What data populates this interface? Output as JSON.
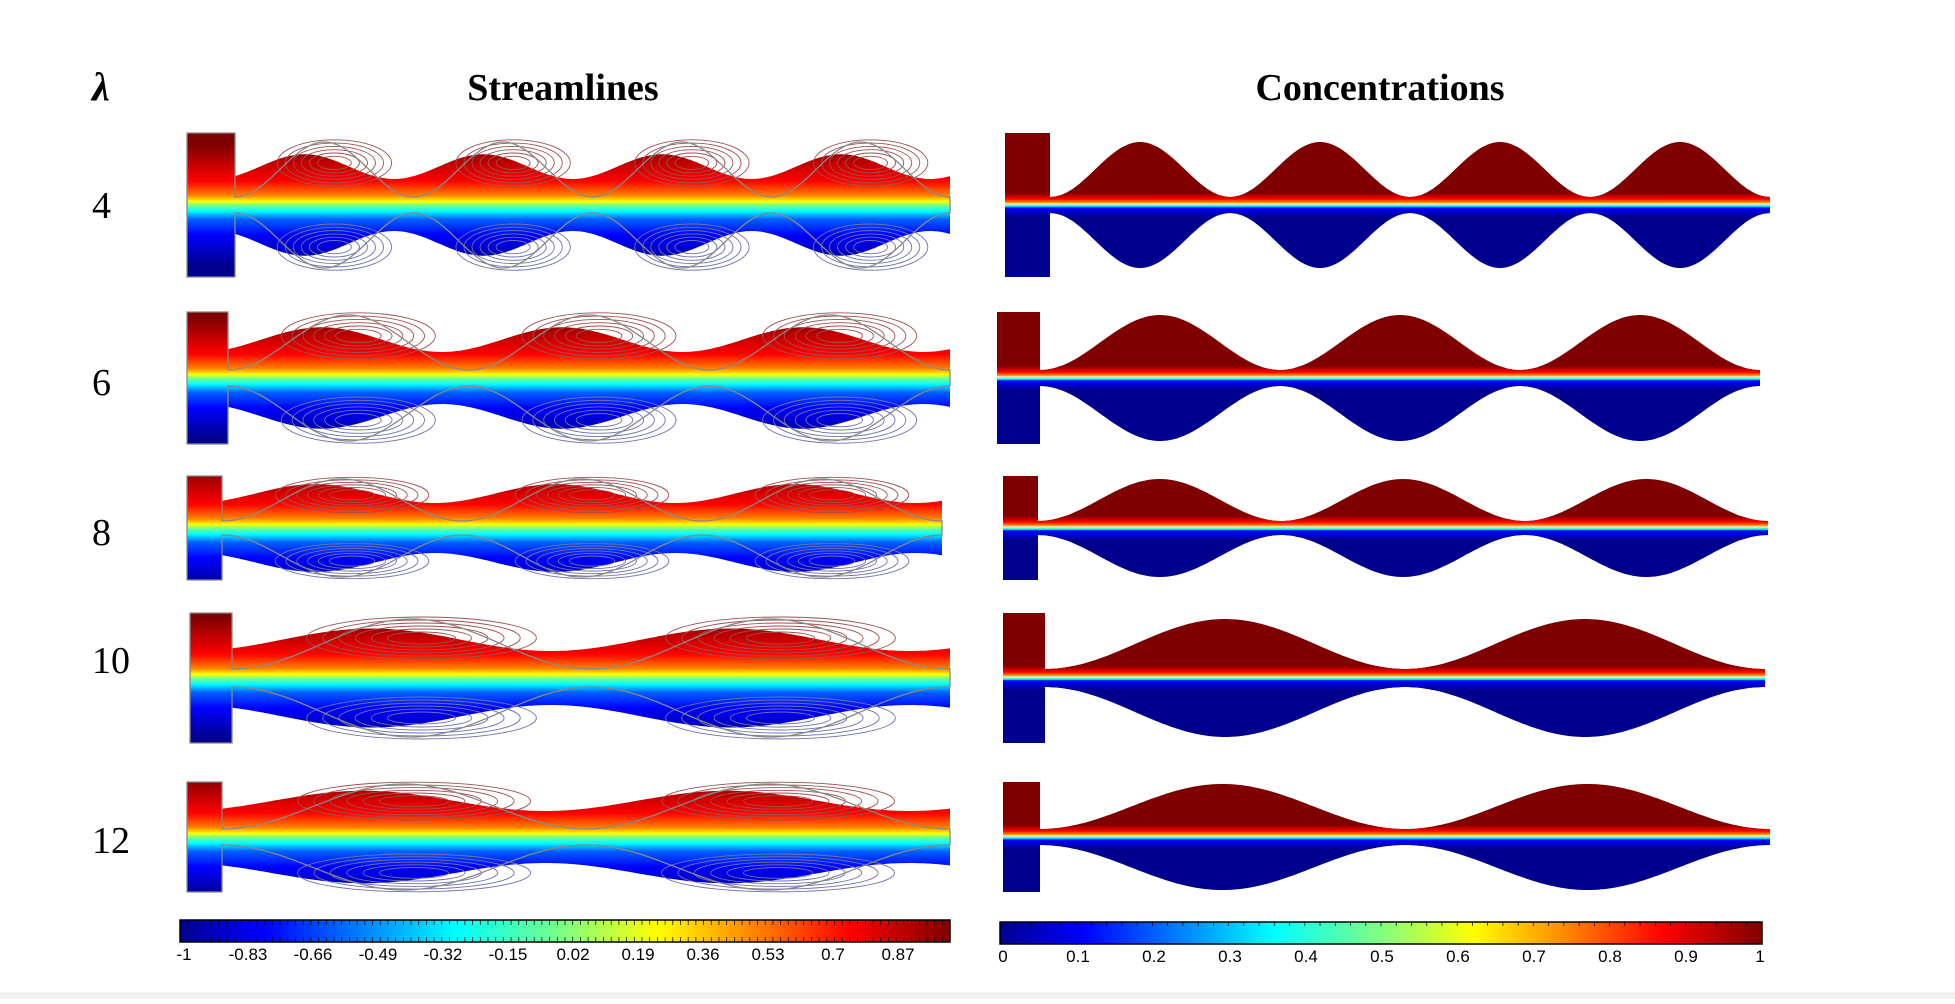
{
  "headers": {
    "lambda_symbol": "λ",
    "streamlines": "Streamlines",
    "concentrations": "Concentrations"
  },
  "rows": [
    {
      "lambda": "4",
      "waves": 4
    },
    {
      "lambda": "6",
      "waves": 3
    },
    {
      "lambda": "8",
      "waves": 3
    },
    {
      "lambda": "10",
      "waves": 2
    },
    {
      "lambda": "12",
      "waves": 2
    }
  ],
  "colorbars": {
    "streamlines": {
      "ticks": [
        "-1",
        "-0.83",
        "-0.66",
        "-0.49",
        "-0.32",
        "-0.15",
        "0.02",
        "0.19",
        "0.36",
        "0.53",
        "0.7",
        "0.87"
      ],
      "range": [
        -1,
        1
      ]
    },
    "concentrations": {
      "ticks": [
        "0",
        "0.1",
        "0.2",
        "0.3",
        "0.4",
        "0.5",
        "0.6",
        "0.7",
        "0.8",
        "0.9",
        "1"
      ],
      "range": [
        0,
        1
      ]
    }
  },
  "colors": {
    "dark_red": "#800000",
    "red": "#ff0000",
    "orange": "#ff8000",
    "yellow": "#ffff00",
    "green": "#80ff80",
    "cyan": "#00ffff",
    "blue": "#0000ff",
    "dark_blue": "#00008f",
    "vortex_top": "#a05050",
    "vortex_bottom": "#7070b0",
    "wall": "#888888"
  }
}
